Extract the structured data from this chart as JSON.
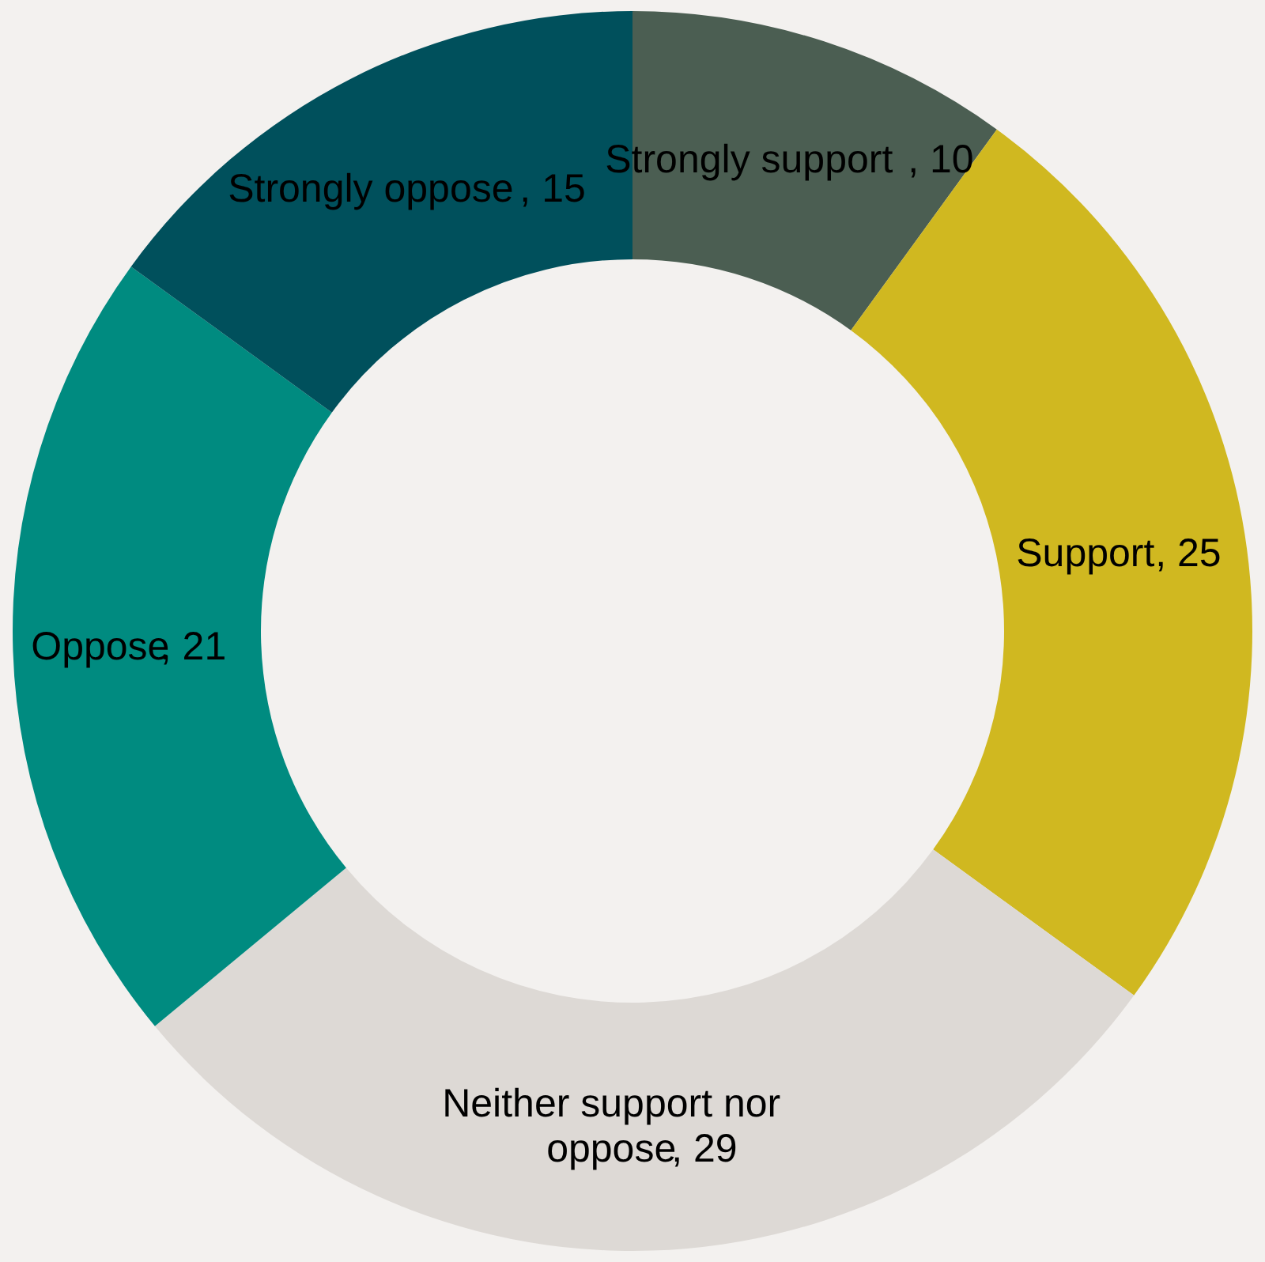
{
  "chart_data": {
    "type": "donut",
    "categories": [
      "Strongly support",
      "Support",
      "Neither support nor oppose",
      "Oppose",
      "Strongly oppose"
    ],
    "values": [
      10,
      25,
      29,
      21,
      15
    ],
    "colors": [
      "#4b5e52",
      "#d0b820",
      "#ddd9d5",
      "#008b80",
      "#00505c"
    ],
    "value_labels": [
      ", 10",
      ", 25",
      ", 29",
      ", 21",
      ", 15"
    ]
  }
}
